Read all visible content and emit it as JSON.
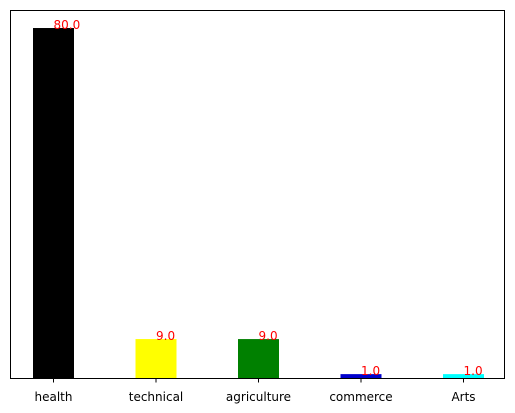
{
  "chart_data": {
    "type": "bar",
    "categories": [
      "health",
      "technical",
      "agriculture",
      "commerce",
      "Arts"
    ],
    "values": [
      80.0,
      9.0,
      9.0,
      1.0,
      1.0
    ],
    "data_labels": [
      "80.0",
      "9.0",
      "9.0",
      "1.0",
      "1.0"
    ],
    "colors": [
      "#000000",
      "#ffff00",
      "#008000",
      "#0000cd",
      "#00ffff"
    ],
    "data_label_color": "#ff0000",
    "title": "",
    "xlabel": "",
    "ylabel": "",
    "ylim": [
      0,
      84
    ],
    "y_ticks_visible": false,
    "grid": false
  }
}
